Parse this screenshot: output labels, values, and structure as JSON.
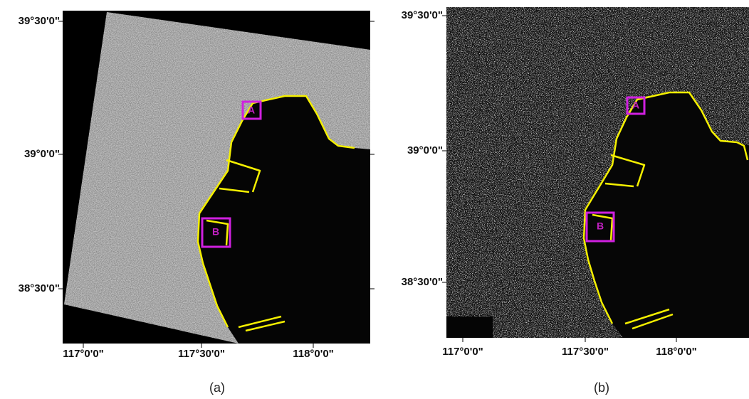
{
  "panels": [
    {
      "caption": "(a)",
      "lat_labels": [
        "39°30'0\"",
        "39°0'0\"",
        "38°30'0\""
      ],
      "lon_labels": [
        "117°0'0\"",
        "117°30'0\"",
        "118°0'0\""
      ],
      "markers": [
        "A",
        "B"
      ]
    },
    {
      "caption": "(b)",
      "lat_labels": [
        "39°30'0\"",
        "39°0'0\"",
        "38°30'0\""
      ],
      "lon_labels": [
        "117°0'0\"",
        "117°30'0\"",
        "118°0'0\""
      ],
      "markers": [
        "A",
        "B"
      ]
    }
  ]
}
